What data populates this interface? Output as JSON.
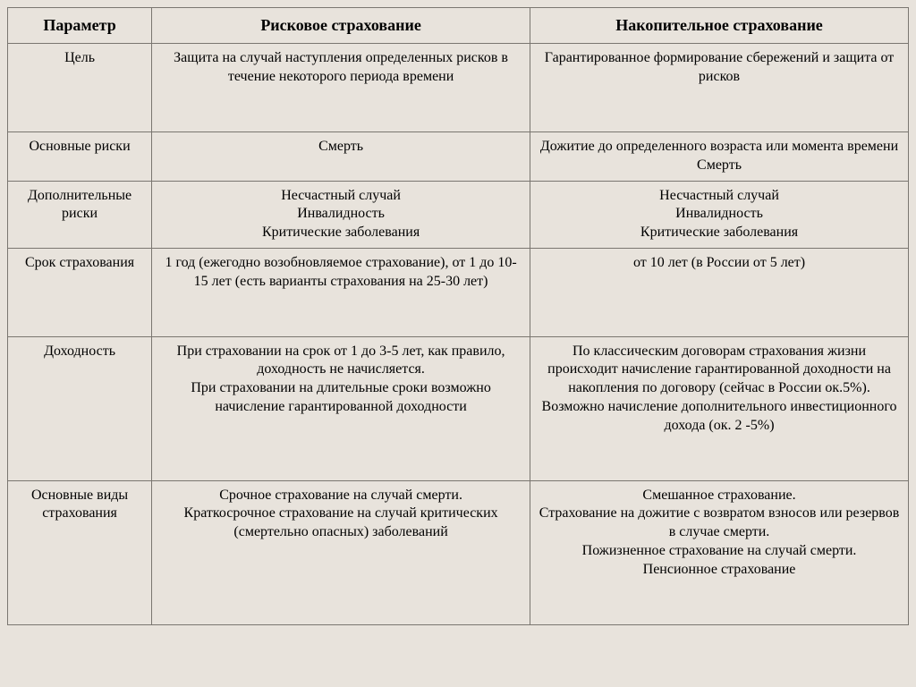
{
  "colors": {
    "background": "#e8e3dc",
    "border": "#7a7670",
    "text": "#000000"
  },
  "table": {
    "headers": {
      "param": "Параметр",
      "risk": "Рисковое страхование",
      "accum": "Накопительное страхование"
    },
    "rows": {
      "goal": {
        "param": "Цель",
        "risk": "Защита на случай наступления определенных рисков в течение некоторого периода времени",
        "accum": "Гарантированное формирование сбережений и защита от рисков"
      },
      "mainRisks": {
        "param": "Основные риски",
        "risk": "Смерть",
        "accum_l1": "Дожитие до определенного возраста или момента времени",
        "accum_l2": "Смерть"
      },
      "addRisks": {
        "param_l1": "Дополнительные",
        "param_l2": "риски",
        "l1": "Несчастный случай",
        "l2": "Инвалидность",
        "l3": "Критические заболевания"
      },
      "term": {
        "param": "Срок страхования",
        "risk": "1 год (ежегодно возобновляемое страхование), от 1 до 10-15 лет (есть варианты страхования на 25-30 лет)",
        "accum": "от 10 лет (в России от 5 лет)"
      },
      "yield": {
        "param": "Доходность",
        "risk_l1": "При страховании на срок от 1 до 3-5 лет, как правило, доходность не начисляется.",
        "risk_l2": "При страховании на длительные сроки возможно начисление гарантированной доходности",
        "accum_l1": "По классическим договорам страхования жизни происходит начисление гарантированной доходности на накопления по договору (сейчас в России ок.5%).",
        "accum_l2": "Возможно начисление дополнительного инвестиционного дохода (ок. 2 -5%)"
      },
      "types": {
        "param_l1": "Основные виды",
        "param_l2": "страхования",
        "risk_l1": "Срочное страхование на случай смерти.",
        "risk_l2": "Краткосрочное страхование на случай критических (смертельно опасных) заболеваний",
        "accum_l1": "Смешанное страхование.",
        "accum_l2": "Страхование на дожитие с возвратом взносов или резервов в случае смерти.",
        "accum_l3": "Пожизненное страхование на случай смерти.",
        "accum_l4": "Пенсионное страхование"
      }
    }
  }
}
